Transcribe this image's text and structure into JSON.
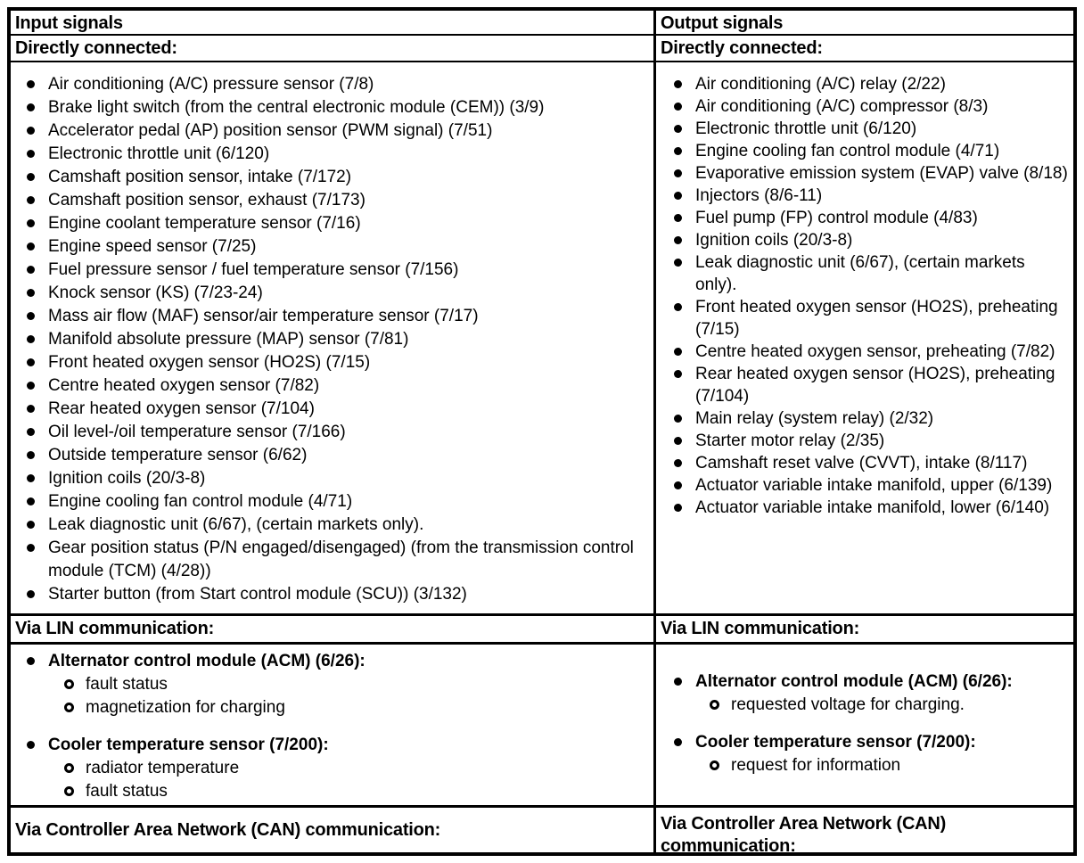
{
  "colors": {
    "border": "#000000",
    "background": "#ffffff",
    "text": "#000000"
  },
  "input": {
    "header": "Input signals",
    "directly_connected_label": "Directly connected:",
    "directly_connected": [
      "Air conditioning (A/C) pressure sensor (7/8)",
      "Brake light switch (from the central electronic module (CEM)) (3/9)",
      "Accelerator pedal (AP) position sensor (PWM signal) (7/51)",
      "Electronic throttle unit (6/120)",
      "Camshaft position sensor, intake (7/172)",
      "Camshaft position sensor, exhaust (7/173)",
      "Engine coolant temperature sensor (7/16)",
      "Engine speed sensor (7/25)",
      "Fuel pressure sensor / fuel temperature sensor (7/156)",
      "Knock sensor (KS) (7/23-24)",
      "Mass air flow (MAF) sensor/air temperature sensor (7/17)",
      "Manifold absolute pressure (MAP) sensor (7/81)",
      "Front heated oxygen sensor (HO2S) (7/15)",
      "Centre heated oxygen sensor (7/82)",
      "Rear heated oxygen sensor (7/104)",
      "Oil level-/oil temperature sensor (7/166)",
      "Outside temperature sensor (6/62)",
      "Ignition coils (20/3-8)",
      "Engine cooling fan control module (4/71)",
      "Leak diagnostic unit (6/67), (certain markets only).",
      "Gear position status (P/N engaged/disengaged) (from the transmission control module (TCM) (4/28))",
      "Starter button (from Start control module (SCU)) (3/132)"
    ],
    "lin_label": "Via LIN communication:",
    "lin_groups": [
      {
        "title": "Alternator control module (ACM) (6/26):",
        "subitems": [
          "fault status",
          "magnetization for charging"
        ]
      },
      {
        "title": "Cooler temperature sensor (7/200):",
        "subitems": [
          "radiator temperature",
          "fault status"
        ]
      }
    ],
    "can_label": "Via Controller Area Network (CAN) communication:"
  },
  "output": {
    "header": "Output signals",
    "directly_connected_label": "Directly connected:",
    "directly_connected": [
      "Air conditioning (A/C) relay (2/22)",
      "Air conditioning (A/C) compressor (8/3)",
      "Electronic throttle unit (6/120)",
      "Engine cooling fan control module (4/71)",
      "Evaporative emission system (EVAP) valve (8/18)",
      "Injectors (8/6-11)",
      "Fuel pump (FP) control module (4/83)",
      "Ignition coils (20/3-8)",
      "Leak diagnostic unit (6/67), (certain markets only).",
      "Front heated oxygen sensor (HO2S), preheating (7/15)",
      "Centre heated oxygen sensor, preheating (7/82)",
      "Rear heated oxygen sensor (HO2S), preheating (7/104)",
      "Main relay (system relay) (2/32)",
      "Starter motor relay (2/35)",
      "Camshaft reset valve (CVVT), intake (8/117)",
      "Actuator variable intake manifold, upper (6/139)",
      "Actuator variable intake manifold, lower (6/140)"
    ],
    "lin_label": "Via LIN communication:",
    "lin_groups": [
      {
        "title": "Alternator control module (ACM) (6/26):",
        "subitems": [
          "requested voltage for charging."
        ]
      },
      {
        "title": "Cooler temperature sensor (7/200):",
        "subitems": [
          "request for information"
        ]
      }
    ],
    "can_label": "Via Controller Area Network (CAN) communication:"
  }
}
